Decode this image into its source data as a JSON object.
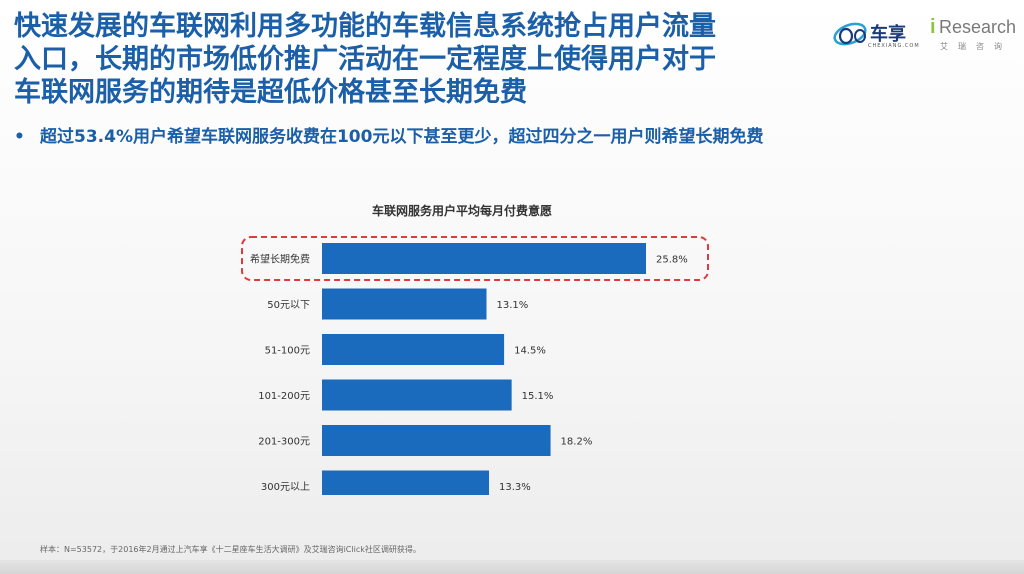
{
  "headline": {
    "line1": "快速发展的车联网利用多功能的车载信息系统抢占用户流量",
    "line2": "入口，长期的市场低价推广活动在一定程度上使得用户对于",
    "line3": "车联网服务的期待是超低价格甚至长期免费"
  },
  "bullet": {
    "marker": "•",
    "text": "超过53.4%用户希望车联网服务收费在100元以下甚至更少，超过四分之一用户则希望长期免费"
  },
  "logos": {
    "chexiang_text": "车享",
    "chexiang_sub": "CHEXIANG.COM",
    "iresearch_i": "i",
    "iresearch_word": "Research",
    "iresearch_cn": "艾瑞咨询"
  },
  "chart_data": {
    "type": "bar",
    "orientation": "horizontal",
    "title": "车联网服务用户平均每月付费意愿",
    "categories": [
      "希望长期免费",
      "50元以下",
      "51-100元",
      "101-200元",
      "201-300元",
      "300元以上"
    ],
    "values": [
      25.8,
      13.1,
      14.5,
      15.1,
      18.2,
      13.3
    ],
    "value_labels": [
      "25.8%",
      "13.1%",
      "14.5%",
      "15.1%",
      "18.2%",
      "13.3%"
    ],
    "highlight_index": 0,
    "bar_color": "#1a6bbd",
    "highlight_color": "#e03a3a",
    "xlim": [
      0,
      25.8
    ],
    "grid": false,
    "legend": "none"
  },
  "footnote": "样本：N=53572，于2016年2月通过上汽车享《十二星座车生活大调研》及艾瑞咨询iClick社区调研获得。"
}
